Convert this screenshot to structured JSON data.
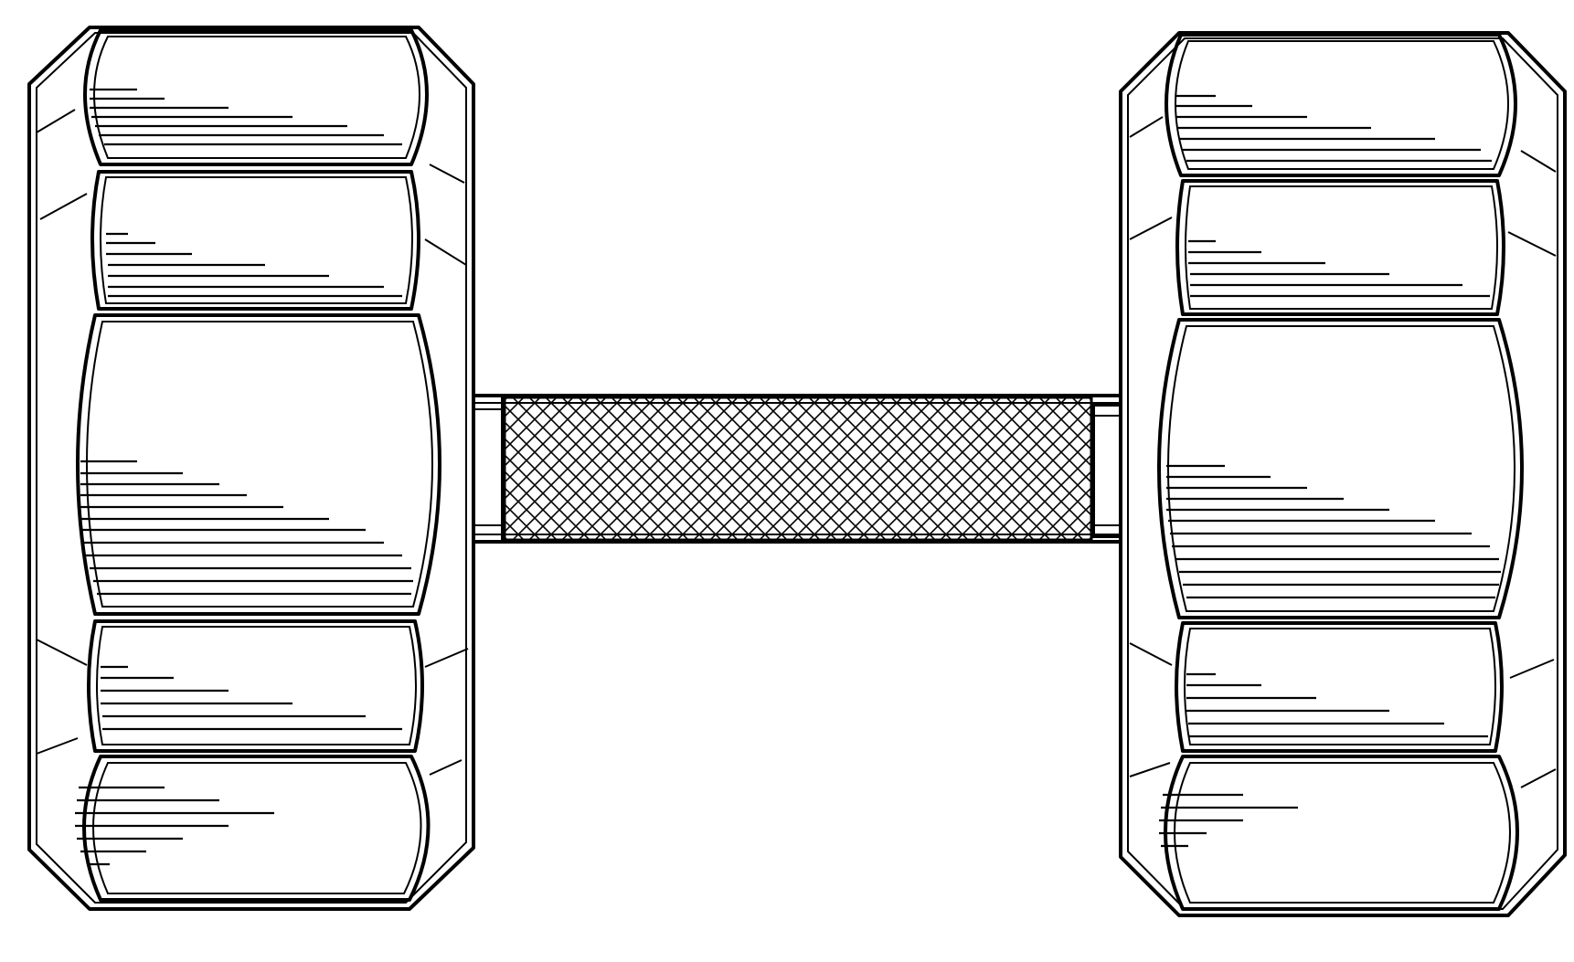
{
  "figure": {
    "subject": "dumbbell-design-drawing",
    "parts": {
      "left_weight": "hexagonal-head",
      "right_weight": "hexagonal-head",
      "handle": "knurled-grip"
    },
    "colors": {
      "line": "#000000",
      "background": "#ffffff"
    }
  }
}
